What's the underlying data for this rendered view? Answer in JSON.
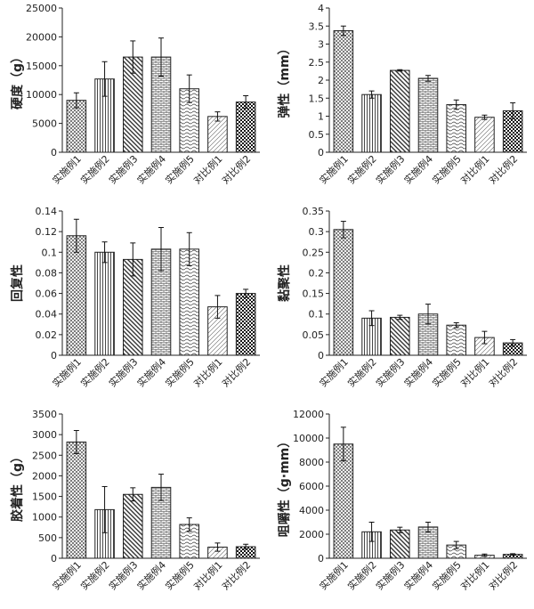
{
  "chart_data": [
    {
      "type": "bar",
      "ylabel": "硬度（g）",
      "categories": [
        "实施例1",
        "实施例2",
        "实施例3",
        "实施例4",
        "实施例5",
        "对比例1",
        "对比例2"
      ],
      "values": [
        9000,
        12700,
        16500,
        16500,
        11000,
        6200,
        8700
      ],
      "errors": [
        1300,
        3000,
        2800,
        3300,
        2400,
        800,
        1100
      ],
      "ylim": [
        0,
        25000
      ],
      "yticks": [
        "0",
        "5000",
        "10000",
        "15000",
        "20000",
        "25000"
      ]
    },
    {
      "type": "bar",
      "ylabel": "弹性（mm）",
      "categories": [
        "实施例1",
        "实施例2",
        "实施例3",
        "实施例4",
        "实施例5",
        "对比例1",
        "对比例2"
      ],
      "values": [
        3.37,
        1.6,
        2.27,
        2.05,
        1.32,
        0.97,
        1.15
      ],
      "errors": [
        0.13,
        0.1,
        0.02,
        0.08,
        0.13,
        0.06,
        0.22
      ],
      "ylim": [
        0,
        4
      ],
      "yticks": [
        "0",
        "0.5",
        "1",
        "1.5",
        "2",
        "2.5",
        "3",
        "3.5",
        "4"
      ]
    },
    {
      "type": "bar",
      "ylabel": "回复性",
      "categories": [
        "实施例1",
        "实施例2",
        "实施例3",
        "实施例4",
        "实施例5",
        "对比例1",
        "对比例2"
      ],
      "values": [
        0.116,
        0.1,
        0.093,
        0.103,
        0.103,
        0.047,
        0.06
      ],
      "errors": [
        0.016,
        0.01,
        0.016,
        0.021,
        0.016,
        0.011,
        0.004
      ],
      "ylim": [
        0,
        0.14
      ],
      "yticks": [
        "0",
        "0.02",
        "0.04",
        "0.06",
        "0.08",
        "0.1",
        "0.12",
        "0.14"
      ]
    },
    {
      "type": "bar",
      "ylabel": "黏聚性",
      "categories": [
        "实施例1",
        "实施例2",
        "实施例3",
        "实施例4",
        "实施例5",
        "对比例1",
        "对比例2"
      ],
      "values": [
        0.305,
        0.09,
        0.092,
        0.1,
        0.073,
        0.043,
        0.03
      ],
      "errors": [
        0.02,
        0.018,
        0.005,
        0.024,
        0.006,
        0.015,
        0.008
      ],
      "ylim": [
        0,
        0.35
      ],
      "yticks": [
        "0",
        "0.05",
        "0.1",
        "0.15",
        "0.2",
        "0.25",
        "0.3",
        "0.35"
      ]
    },
    {
      "type": "bar",
      "ylabel": "胶着性（g）",
      "categories": [
        "实施例1",
        "实施例2",
        "实施例3",
        "实施例4",
        "实施例5",
        "对比例1",
        "对比例2"
      ],
      "values": [
        2820,
        1180,
        1550,
        1720,
        820,
        270,
        280
      ],
      "errors": [
        280,
        560,
        160,
        320,
        160,
        100,
        60
      ],
      "ylim": [
        0,
        3500
      ],
      "yticks": [
        "0",
        "500",
        "1000",
        "1500",
        "2000",
        "2500",
        "3000",
        "3500"
      ]
    },
    {
      "type": "bar",
      "ylabel": "咀嚼性（g·mm）",
      "categories": [
        "实施例1",
        "实施例2",
        "实施例3",
        "实施例4",
        "实施例5",
        "对比例1",
        "对比例2"
      ],
      "values": [
        9500,
        2200,
        2350,
        2600,
        1100,
        250,
        320
      ],
      "errors": [
        1400,
        800,
        230,
        400,
        300,
        100,
        60
      ],
      "ylim": [
        0,
        12000
      ],
      "yticks": [
        "0",
        "2000",
        "4000",
        "6000",
        "8000",
        "10000",
        "12000"
      ]
    }
  ],
  "bar_patterns": [
    "crosshatch-fine",
    "vertical",
    "diagonal-down",
    "brick",
    "wave",
    "diagonal-up-light",
    "checker"
  ],
  "colors": {
    "bar_stroke": "#222222",
    "axis": "#222222",
    "fill": "#ffffff",
    "pattern": "#333333"
  }
}
